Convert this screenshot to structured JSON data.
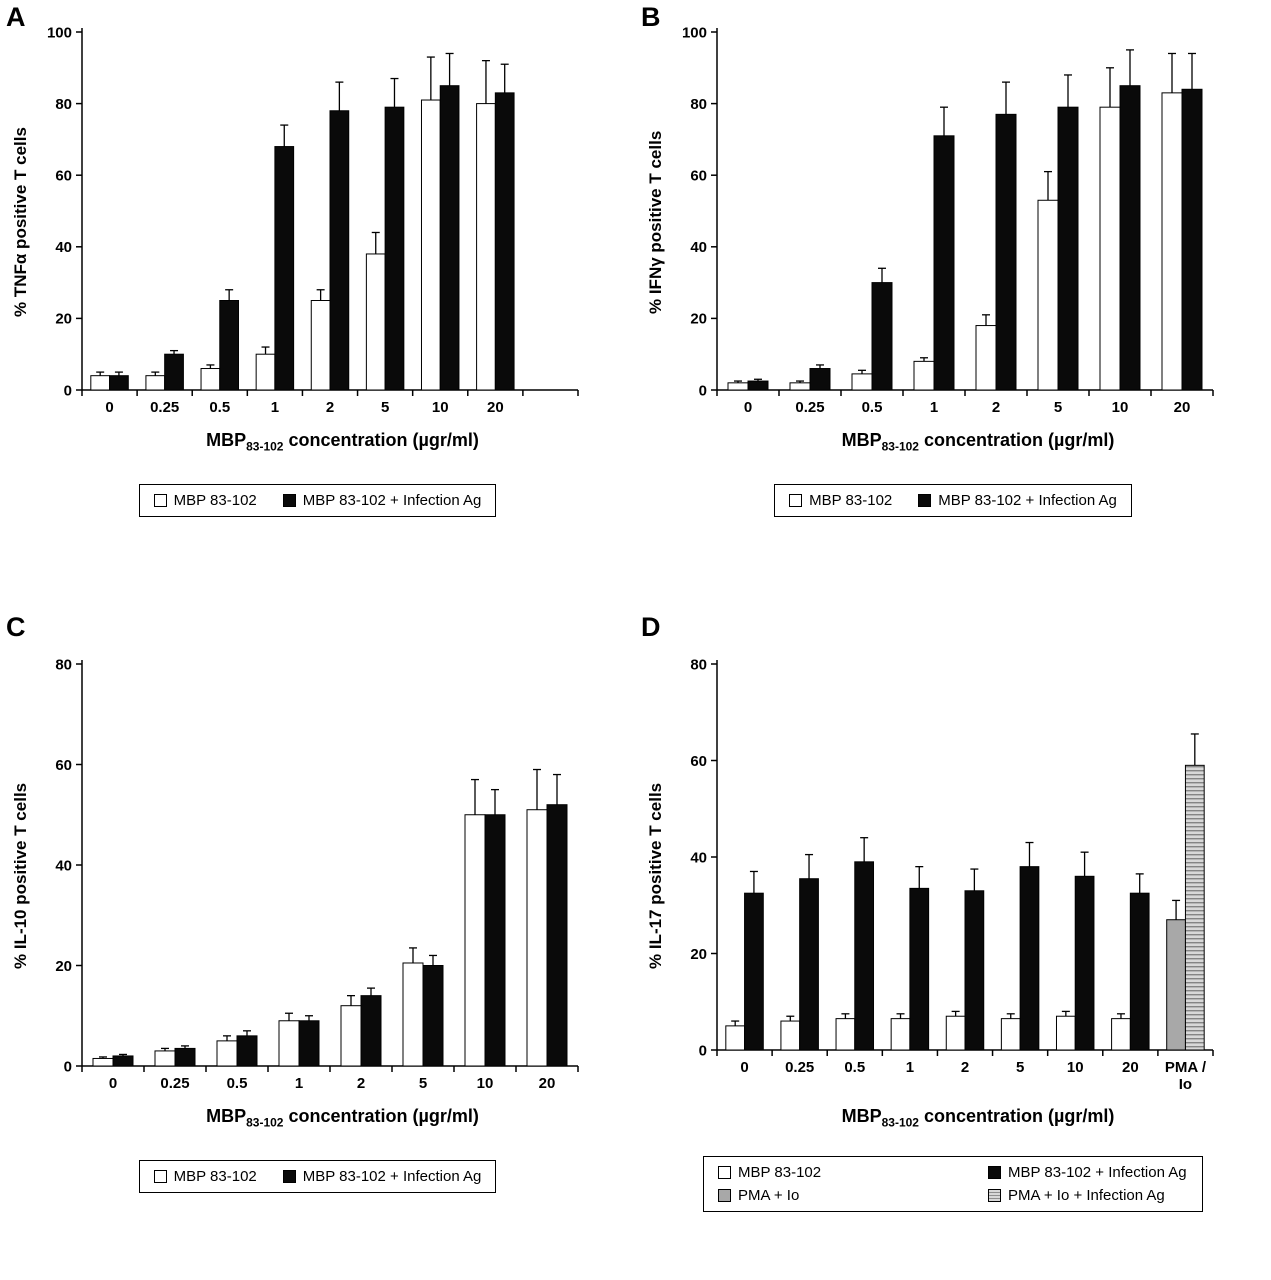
{
  "chart_data": [
    {
      "type": "bar",
      "panel": "A",
      "ylabel": "% TNFα positive T cells",
      "xlabel_prefix": "MBP",
      "xlabel_sub": "83-102",
      "xlabel_suffix": " concentration (µgr/ml)",
      "categories": [
        "0",
        "0.25",
        "0.5",
        "1",
        "2",
        "5",
        "10",
        "20"
      ],
      "ylim": [
        0,
        100
      ],
      "yticks": [
        0,
        20,
        40,
        60,
        80,
        100
      ],
      "grid": false,
      "legend_position": "bottom",
      "extra_right": true,
      "series": [
        {
          "name": "MBP 83-102",
          "fill": "white",
          "values": [
            4,
            4,
            6,
            10,
            25,
            38,
            81,
            80
          ],
          "errors": [
            1,
            1,
            1,
            2,
            3,
            6,
            12,
            12
          ]
        },
        {
          "name": "MBP 83-102 + Infection Ag",
          "fill": "black",
          "values": [
            4,
            10,
            25,
            68,
            78,
            79,
            85,
            83
          ],
          "errors": [
            1,
            1,
            3,
            6,
            8,
            8,
            9,
            8
          ]
        }
      ]
    },
    {
      "type": "bar",
      "panel": "B",
      "ylabel": "% IFNγ positive T cells",
      "xlabel_prefix": "MBP",
      "xlabel_sub": "83-102",
      "xlabel_suffix": " concentration (µgr/ml)",
      "categories": [
        "0",
        "0.25",
        "0.5",
        "1",
        "2",
        "5",
        "10",
        "20"
      ],
      "ylim": [
        0,
        100
      ],
      "yticks": [
        0,
        20,
        40,
        60,
        80,
        100
      ],
      "grid": false,
      "legend_position": "bottom",
      "extra_right": false,
      "series": [
        {
          "name": "MBP 83-102",
          "fill": "white",
          "values": [
            2,
            2,
            4.5,
            8,
            18,
            53,
            79,
            83
          ],
          "errors": [
            0.5,
            0.5,
            1,
            1,
            3,
            8,
            11,
            11
          ]
        },
        {
          "name": "MBP 83-102 + Infection Ag",
          "fill": "black",
          "values": [
            2.5,
            6,
            30,
            71,
            77,
            79,
            85,
            84
          ],
          "errors": [
            0.5,
            1,
            4,
            8,
            9,
            9,
            10,
            10
          ]
        }
      ]
    },
    {
      "type": "bar",
      "panel": "C",
      "ylabel": "% IL-10 positive T cells",
      "xlabel_prefix": "MBP",
      "xlabel_sub": "83-102",
      "xlabel_suffix": " concentration (µgr/ml)",
      "categories": [
        "0",
        "0.25",
        "0.5",
        "1",
        "2",
        "5",
        "10",
        "20"
      ],
      "ylim": [
        0,
        80
      ],
      "yticks": [
        0,
        20,
        40,
        60,
        80
      ],
      "grid": false,
      "legend_position": "bottom",
      "extra_right": false,
      "series": [
        {
          "name": "MBP 83-102",
          "fill": "white",
          "values": [
            1.5,
            3,
            5,
            9,
            12,
            20.5,
            50,
            51
          ],
          "errors": [
            0.3,
            0.5,
            1,
            1.5,
            2,
            3,
            7,
            8
          ]
        },
        {
          "name": "MBP 83-102 + Infection Ag",
          "fill": "black",
          "values": [
            2,
            3.5,
            6,
            9,
            14,
            20,
            50,
            52
          ],
          "errors": [
            0.3,
            0.5,
            1,
            1,
            1.5,
            2,
            5,
            6
          ]
        }
      ]
    },
    {
      "type": "bar",
      "panel": "D",
      "ylabel": "% IL-17 positive T cells",
      "xlabel_prefix": "MBP",
      "xlabel_sub": "83-102",
      "xlabel_suffix": " concentration (µgr/ml)",
      "categories": [
        "0",
        "0.25",
        "0.5",
        "1",
        "2",
        "5",
        "10",
        "20",
        "PMA /\nIo"
      ],
      "ylim": [
        0,
        80
      ],
      "yticks": [
        0,
        20,
        40,
        60,
        80
      ],
      "grid": false,
      "legend_position": "bottom",
      "extra_right": false,
      "series": [
        {
          "name": "MBP 83-102",
          "fill": "white",
          "values": [
            5,
            6,
            6.5,
            6.5,
            7,
            6.5,
            7,
            6.5,
            null
          ],
          "errors": [
            1,
            1,
            1,
            1,
            1,
            1,
            1,
            1,
            null
          ]
        },
        {
          "name": "MBP 83-102 + Infection Ag",
          "fill": "black",
          "values": [
            32.5,
            35.5,
            39,
            33.5,
            33,
            38,
            36,
            32.5,
            null
          ],
          "errors": [
            4.5,
            5,
            5,
            4.5,
            4.5,
            5,
            5,
            4,
            null
          ]
        },
        {
          "name": "PMA + Io",
          "fill": "gray",
          "values": [
            null,
            null,
            null,
            null,
            null,
            null,
            null,
            null,
            27
          ],
          "errors": [
            null,
            null,
            null,
            null,
            null,
            null,
            null,
            null,
            4
          ]
        },
        {
          "name": "PMA + Io + Infection Ag",
          "fill": "striped",
          "values": [
            null,
            null,
            null,
            null,
            null,
            null,
            null,
            null,
            59
          ],
          "errors": [
            null,
            null,
            null,
            null,
            null,
            null,
            null,
            null,
            6.5
          ]
        }
      ]
    }
  ]
}
